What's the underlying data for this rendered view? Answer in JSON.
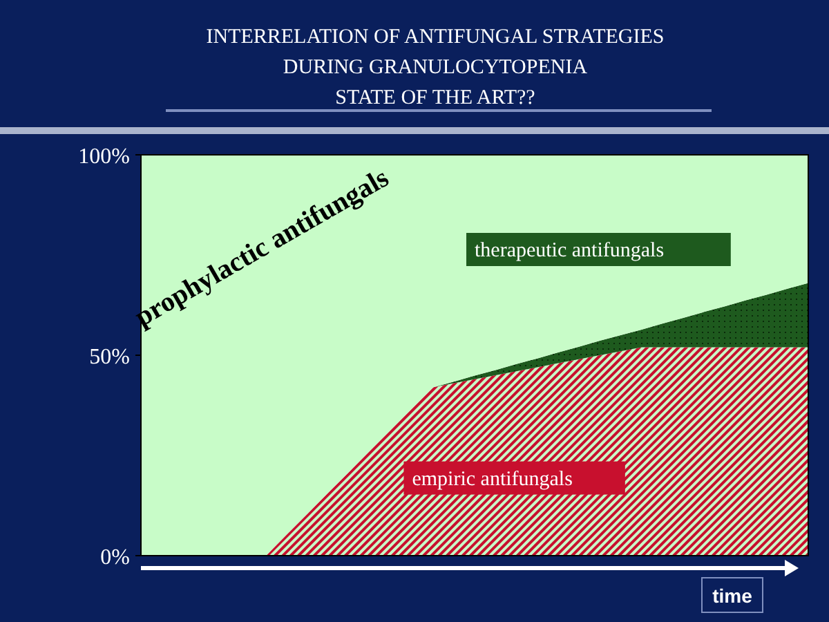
{
  "chart_data": {
    "type": "area",
    "stacked": true,
    "title": "INTERRELATION OF ANTIFUNGAL STRATEGIES\nDURING GRANULOCYTOPENIA\nSTATE OF THE ART??",
    "xlabel": "time",
    "categories": [
      null,
      null,
      null,
      null,
      null,
      null,
      null,
      null,
      null,
      null,
      null,
      null,
      null,
      null,
      null,
      null,
      null,
      null,
      null,
      null,
      null,
      null,
      null,
      null,
      null,
      null,
      null,
      null,
      null,
      null,
      null,
      null,
      null
    ],
    "series": [
      {
        "name": "empiric antifungals",
        "color": "#c8102e",
        "values": [
          0,
          0,
          0,
          0,
          0,
          0,
          0,
          5.3,
          10.5,
          15.8,
          21,
          26.3,
          31.5,
          36.8,
          42,
          43,
          44,
          45,
          46,
          47,
          48,
          49,
          50,
          51,
          52,
          52,
          52,
          52,
          52,
          52,
          52,
          52,
          52
        ]
      },
      {
        "name": "therapeutic antifungals",
        "color": "#1e5a1e",
        "values": [
          0,
          0,
          0,
          0,
          0,
          0,
          0,
          0,
          0,
          0,
          0,
          0,
          0,
          0,
          0,
          0.4,
          0.9,
          1.3,
          1.8,
          2.2,
          2.7,
          3.1,
          3.6,
          4,
          4.4,
          5.9,
          7.3,
          8.8,
          10.2,
          11.7,
          13.1,
          14.6,
          16
        ]
      },
      {
        "name": "prophylactic antifungals",
        "color": "#c8fcc8",
        "values": [
          100,
          100,
          100,
          100,
          100,
          100,
          100,
          94.7,
          89.5,
          84.2,
          79,
          73.7,
          68.5,
          63.2,
          58,
          56.6,
          55.1,
          53.7,
          52.2,
          50.8,
          49.3,
          47.9,
          46.4,
          45,
          43.6,
          42.1,
          40.7,
          39.2,
          37.8,
          36.3,
          34.9,
          33.4,
          32
        ]
      }
    ],
    "ylim": [
      0,
      100
    ],
    "yticks": [
      {
        "value": 0,
        "label": "0%"
      },
      {
        "value": 50,
        "label": "50%"
      },
      {
        "value": 100,
        "label": "100%"
      }
    ],
    "tick_labels": "y"
  }
}
